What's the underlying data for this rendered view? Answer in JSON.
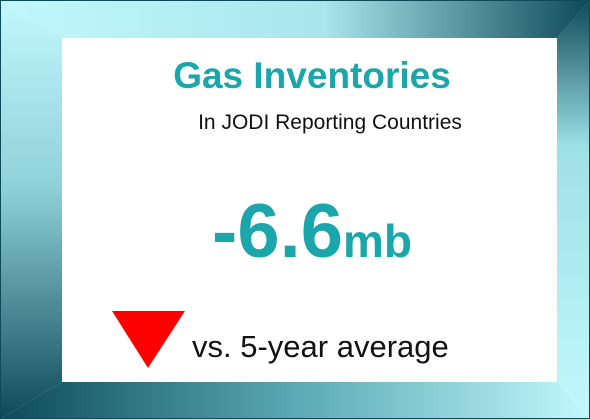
{
  "card": {
    "title": "Gas Inventories",
    "subtitle": "In JODI Reporting Countries",
    "value": -6.6,
    "unit": "mb",
    "comparison": "vs. 5-year average"
  }
}
